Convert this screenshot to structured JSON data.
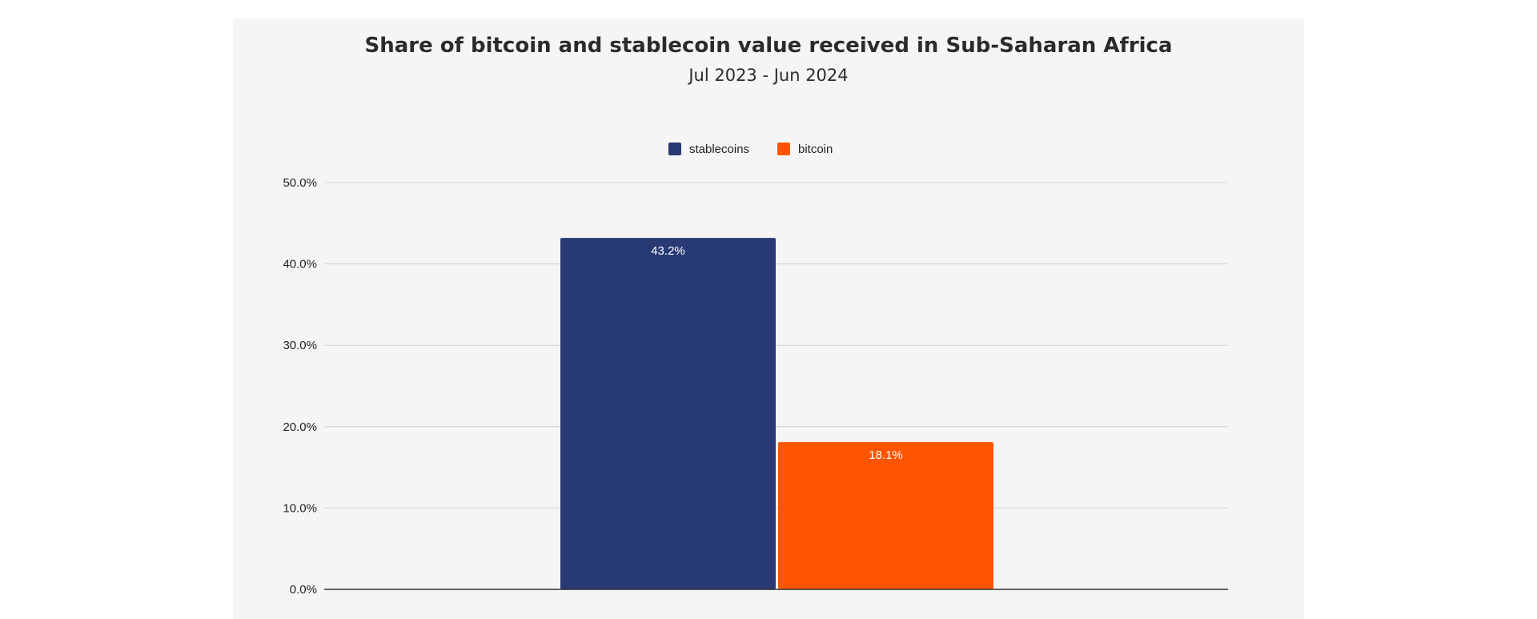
{
  "chart_data": {
    "type": "bar",
    "title": "Share of bitcoin and stablecoin value received in Sub-Saharan Africa",
    "subtitle": "Jul 2023 - Jun 2024",
    "categories": [
      ""
    ],
    "series": [
      {
        "name": "stablecoins",
        "values": [
          43.2
        ],
        "label": "43.2%",
        "color": "#283a74"
      },
      {
        "name": "bitcoin",
        "values": [
          18.1
        ],
        "label": "18.1%",
        "color": "#ff5500"
      }
    ],
    "xlabel": "",
    "ylabel": "",
    "ylim": [
      0,
      50
    ],
    "yticks": [
      0,
      10,
      20,
      30,
      40,
      50
    ],
    "ytick_labels": [
      "0.0%",
      "10.0%",
      "20.0%",
      "30.0%",
      "40.0%",
      "50.0%"
    ],
    "legend_position": "top-center",
    "grid": true
  }
}
